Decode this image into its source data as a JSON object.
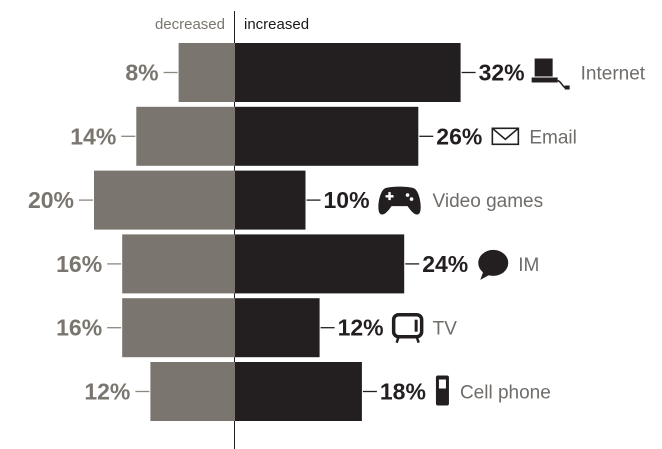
{
  "colors": {
    "decreased": "#7a756f",
    "increased": "#231f20",
    "label_text": "#6f6c69"
  },
  "chart_data": {
    "type": "bar",
    "orientation": "horizontal-diverging",
    "unit": "%",
    "headers": {
      "left": "decreased",
      "right": "increased"
    },
    "categories": [
      "Internet",
      "Email",
      "Video games",
      "IM",
      "TV",
      "Cell phone"
    ],
    "icons": [
      "computer-icon",
      "envelope-icon",
      "gamepad-icon",
      "chat-bubble-icon",
      "tv-icon",
      "cell-phone-icon"
    ],
    "series": [
      {
        "name": "decreased",
        "values": [
          8,
          14,
          20,
          16,
          16,
          12
        ],
        "labels": [
          "8%",
          "14%",
          "20%",
          "16%",
          "16%",
          "12%"
        ]
      },
      {
        "name": "increased",
        "values": [
          32,
          26,
          10,
          24,
          12,
          18
        ],
        "labels": [
          "32%",
          "26%",
          "10%",
          "24%",
          "12%",
          "18%"
        ]
      }
    ]
  }
}
